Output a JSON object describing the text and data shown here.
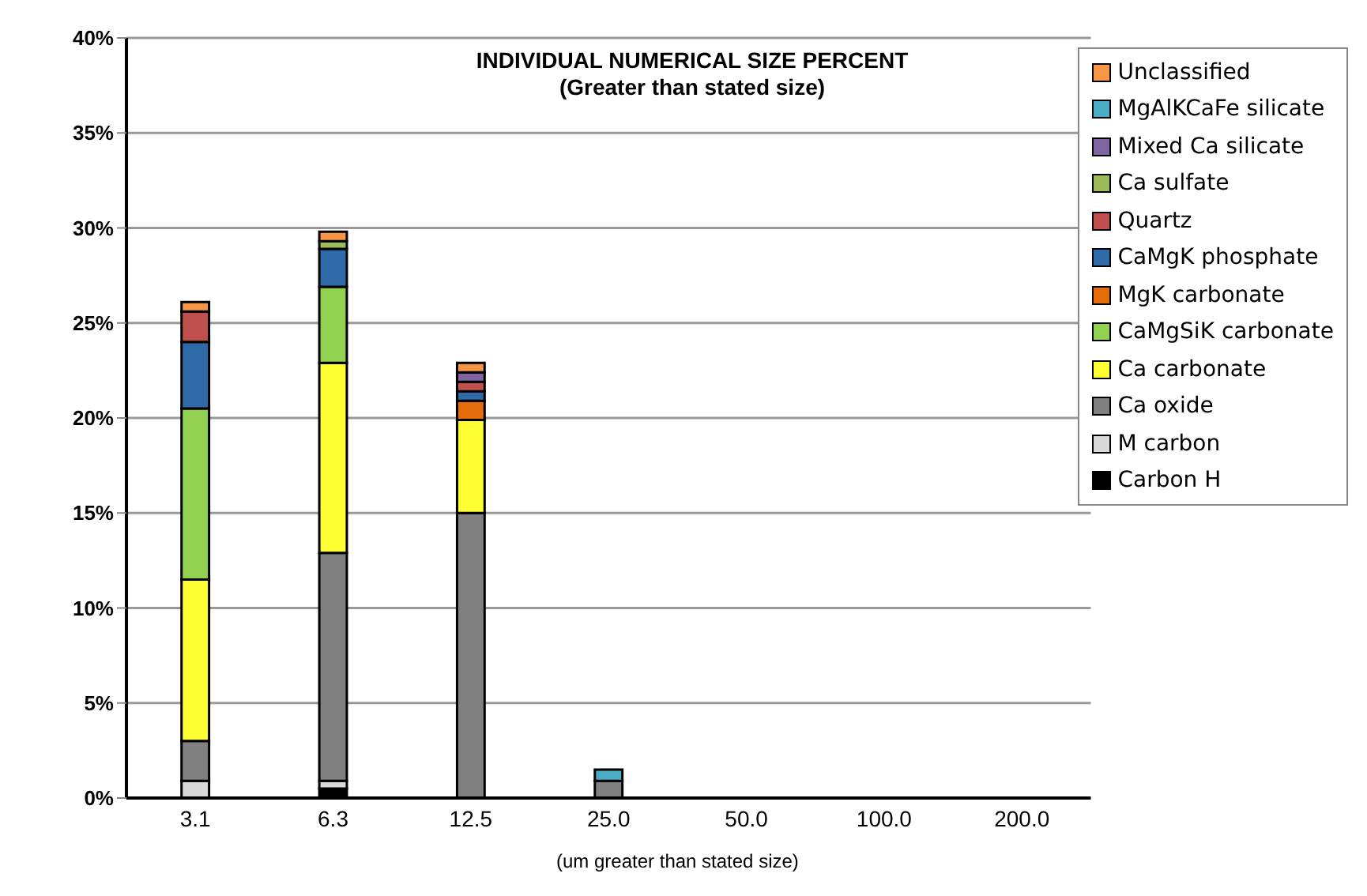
{
  "chart_data": {
    "type": "bar",
    "title": "INDIVIDUAL NUMERICAL SIZE PERCENT",
    "subtitle": "(Greater than stated size)",
    "xlabel": "(um greater than stated size)",
    "categories": [
      "3.1",
      "6.3",
      "12.5",
      "25.0",
      "50.0",
      "100.0",
      "200.0"
    ],
    "stacked": true,
    "series": [
      {
        "name": "Carbon H",
        "color": "#000000",
        "values": [
          0,
          0.5,
          0,
          0,
          0,
          0,
          0
        ]
      },
      {
        "name": "M carbon",
        "color": "#d9d9d9",
        "values": [
          0.9,
          0.4,
          0,
          0,
          0,
          0,
          0
        ]
      },
      {
        "name": "Ca oxide",
        "color": "#808080",
        "values": [
          2.1,
          12.0,
          15.0,
          0.9,
          0,
          0,
          0
        ]
      },
      {
        "name": "Ca carbonate",
        "color": "#ffff33",
        "values": [
          8.5,
          10.0,
          4.9,
          0,
          0,
          0,
          0
        ]
      },
      {
        "name": "CaMgSiK carbonate",
        "color": "#92d050",
        "values": [
          9.0,
          4.0,
          0,
          0,
          0,
          0,
          0
        ]
      },
      {
        "name": "MgK carbonate",
        "color": "#e46c0a",
        "values": [
          0,
          0,
          1.0,
          0,
          0,
          0,
          0
        ]
      },
      {
        "name": "CaMgK phosphate",
        "color": "#2e6aa8",
        "values": [
          3.5,
          2.0,
          0.5,
          0,
          0,
          0,
          0
        ]
      },
      {
        "name": "Quartz",
        "color": "#c0504d",
        "values": [
          1.6,
          0,
          0.5,
          0,
          0,
          0,
          0
        ]
      },
      {
        "name": "Ca sulfate",
        "color": "#9bbb59",
        "values": [
          0,
          0.4,
          0,
          0,
          0,
          0,
          0
        ]
      },
      {
        "name": "Mixed Ca silicate",
        "color": "#8064a2",
        "values": [
          0,
          0,
          0.5,
          0,
          0,
          0,
          0
        ]
      },
      {
        "name": "MgAlKCaFe silicate",
        "color": "#4bacc6",
        "values": [
          0,
          0,
          0,
          0.6,
          0,
          0,
          0
        ]
      },
      {
        "name": "Unclassified",
        "color": "#f79646",
        "values": [
          0.5,
          0.5,
          0.5,
          0,
          0,
          0,
          0
        ]
      }
    ],
    "ylim": [
      0,
      40
    ],
    "yticks": [
      {
        "value": 0,
        "label": "0%"
      },
      {
        "value": 5,
        "label": "5%"
      },
      {
        "value": 10,
        "label": "10%"
      },
      {
        "value": 15,
        "label": "15%"
      },
      {
        "value": 20,
        "label": "20%"
      },
      {
        "value": 25,
        "label": "25%"
      },
      {
        "value": 30,
        "label": "30%"
      },
      {
        "value": 35,
        "label": "35%"
      },
      {
        "value": 40,
        "label": "40%"
      }
    ],
    "grid": "y",
    "legend": "top right"
  }
}
